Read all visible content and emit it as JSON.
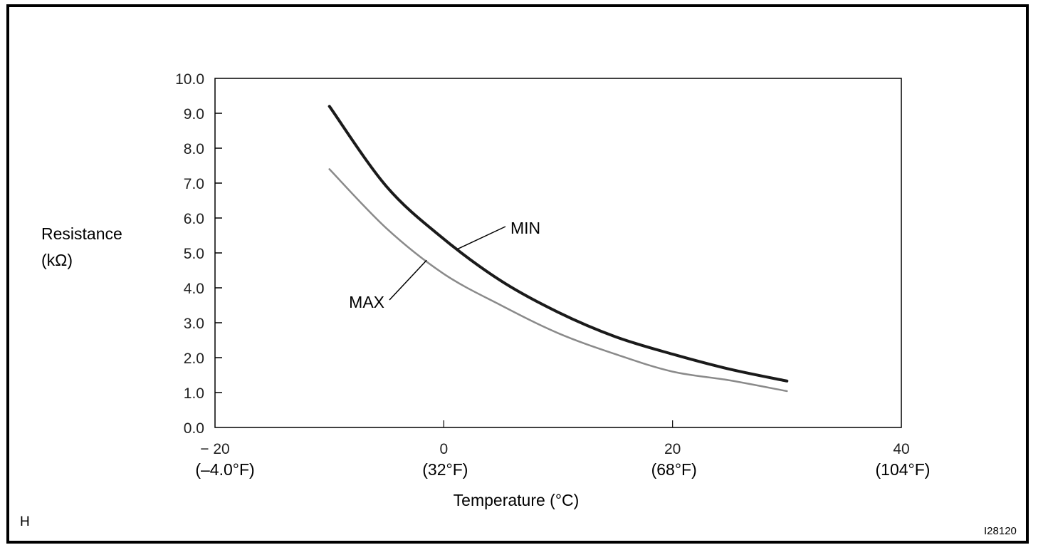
{
  "chart_data": {
    "type": "line",
    "title": "",
    "xlabel": "Temperature (°C)",
    "ylabel_lines": [
      "Resistance",
      "(kΩ)"
    ],
    "xlim": [
      -20,
      40
    ],
    "ylim": [
      0,
      10
    ],
    "grid": false,
    "x_ticks": [
      {
        "value": -20,
        "label": "− 20",
        "sublabel": "(–4.0°F)"
      },
      {
        "value": 0,
        "label": "0",
        "sublabel": "(32°F)"
      },
      {
        "value": 20,
        "label": "20",
        "sublabel": "(68°F)"
      },
      {
        "value": 40,
        "label": "40",
        "sublabel": "(104°F)"
      }
    ],
    "y_ticks": [
      {
        "value": 0,
        "label": "0.0"
      },
      {
        "value": 1,
        "label": "1.0"
      },
      {
        "value": 2,
        "label": "2.0"
      },
      {
        "value": 3,
        "label": "3.0"
      },
      {
        "value": 4,
        "label": "4.0"
      },
      {
        "value": 5,
        "label": "5.0"
      },
      {
        "value": 6,
        "label": "6.0"
      },
      {
        "value": 7,
        "label": "7.0"
      },
      {
        "value": 8,
        "label": "8.0"
      },
      {
        "value": 9,
        "label": "9.0"
      },
      {
        "value": 10,
        "label": "10.0"
      }
    ],
    "x": [
      -10,
      -5,
      0,
      5,
      10,
      15,
      20,
      25,
      30
    ],
    "series": [
      {
        "name": "MIN",
        "color": "#1a1a1a",
        "values": [
          9.2,
          6.9,
          5.4,
          4.2,
          3.3,
          2.6,
          2.1,
          1.67,
          1.33
        ]
      },
      {
        "name": "MAX",
        "color": "#8a8a8a",
        "values": [
          7.4,
          5.7,
          4.4,
          3.5,
          2.7,
          2.1,
          1.6,
          1.35,
          1.04
        ]
      }
    ],
    "annotations": [
      {
        "text": "MIN",
        "series": "MIN",
        "at_x": 1.2
      },
      {
        "text": "MAX",
        "series": "MAX",
        "at_x": -1.5
      }
    ]
  },
  "corner_left": "H",
  "corner_right": "I28120"
}
